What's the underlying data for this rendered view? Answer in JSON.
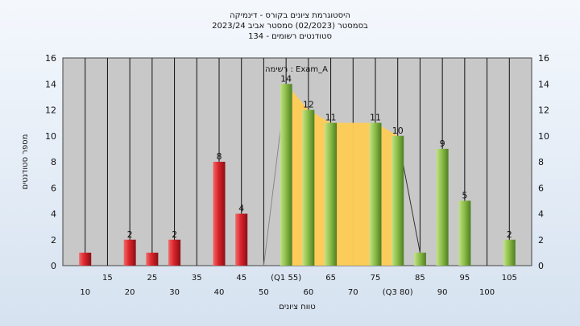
{
  "chart_data": {
    "type": "bar",
    "title_lines": [
      "היסטוגרמת ציונים בקורס - דינמיקה",
      "בסמסטר  (02/2023)  סמסטר אביב 2023/24",
      "סטודנטים רשומים - 134"
    ],
    "legend_text": "רשימה : Exam_A",
    "ylabel": "מספר סטודנטים",
    "xlabel": "טווח ציונים",
    "ylim": [
      0,
      16
    ],
    "y_ticks": [
      "0",
      "2",
      "4",
      "6",
      "8",
      "10",
      "12",
      "14",
      "16"
    ],
    "x_ticks_row1": [
      "15",
      "25",
      "35",
      "45",
      "(Q1 55)",
      "65",
      "75",
      "85",
      "95",
      "105"
    ],
    "x_ticks_row2": [
      "10",
      "20",
      "30",
      "40",
      "50",
      "60",
      "70",
      "(Q3 80)",
      "90",
      "100"
    ],
    "series": [
      {
        "color": "red",
        "bars": [
          {
            "x": 10,
            "value": 1,
            "label": ""
          },
          {
            "x": 20,
            "value": 2,
            "label": "2"
          },
          {
            "x": 25,
            "value": 1,
            "label": ""
          },
          {
            "x": 30,
            "value": 2,
            "label": "2"
          },
          {
            "x": 40,
            "value": 8,
            "label": "8"
          },
          {
            "x": 45,
            "value": 4,
            "label": "4"
          }
        ]
      },
      {
        "color": "green",
        "bars": [
          {
            "x": 55,
            "value": 14,
            "label": "14"
          },
          {
            "x": 60,
            "value": 12,
            "label": "12"
          },
          {
            "x": 65,
            "value": 11,
            "label": "11"
          },
          {
            "x": 75,
            "value": 11,
            "label": "11"
          },
          {
            "x": 80,
            "value": 10,
            "label": "10"
          },
          {
            "x": 85,
            "value": 1,
            "label": ""
          },
          {
            "x": 90,
            "value": 9,
            "label": "9"
          },
          {
            "x": 95,
            "value": 5,
            "label": "5"
          },
          {
            "x": 105,
            "value": 2,
            "label": "2"
          }
        ]
      }
    ],
    "iqr_area": {
      "color": "#ffcc55",
      "points": [
        [
          55,
          14
        ],
        [
          60,
          12
        ],
        [
          65,
          11
        ],
        [
          70,
          11
        ],
        [
          75,
          11
        ],
        [
          80,
          10
        ]
      ]
    },
    "colors": {
      "red_bar": "#d9232b",
      "green_bar": "#8fc04a",
      "plot_bg": "#c8c8c8",
      "grid": "#111111"
    },
    "grid": true
  }
}
